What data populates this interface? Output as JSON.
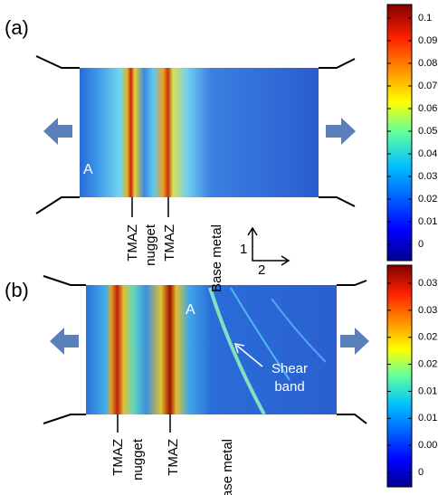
{
  "panels": [
    {
      "label": "(a)",
      "point_label": "A",
      "zone_labels": [
        "TMAZ",
        "nugget",
        "TMAZ",
        "Base metal"
      ],
      "colorbar_ticks": [
        "0.1",
        "0.09",
        "0.08",
        "0.07",
        "0.06",
        "0.05",
        "0.04",
        "0.03",
        "0.02",
        "0.01",
        "0"
      ]
    },
    {
      "label": "(b)",
      "point_label": "A",
      "zone_labels": [
        "TMAZ",
        "nugget",
        "TMAZ",
        "Base metal"
      ],
      "annotation": "Shear band",
      "colorbar_ticks": [
        "0.035",
        "0.03",
        "0.025",
        "0.02",
        "0.015",
        "0.01",
        "0.005",
        "0"
      ]
    }
  ],
  "axes": {
    "axis_1": "1",
    "axis_2": "2"
  }
}
